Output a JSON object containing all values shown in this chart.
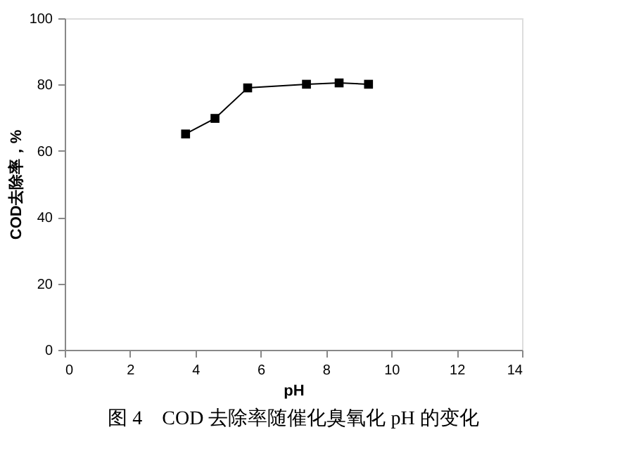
{
  "chart_data": {
    "type": "line",
    "title": "图 4　COD 去除率随催化臭氧化 pH 的变化",
    "xlabel": "pH",
    "ylabel": "COD去除率，%",
    "x": [
      3.7,
      4.6,
      5.6,
      7.4,
      8.4,
      9.3
    ],
    "series": [
      {
        "color": "#000000",
        "values": [
          65.1,
          69.8,
          79.0,
          80.1,
          80.5,
          80.1
        ]
      }
    ],
    "xlim": [
      0,
      14
    ],
    "xticks": [
      0,
      2,
      4,
      6,
      8,
      10,
      12,
      14
    ],
    "ylim": [
      0,
      100
    ],
    "yticks": [
      0,
      20,
      40,
      60,
      80,
      100
    ],
    "marker": "square",
    "line_style": "solid",
    "grid": false,
    "legend": false
  }
}
